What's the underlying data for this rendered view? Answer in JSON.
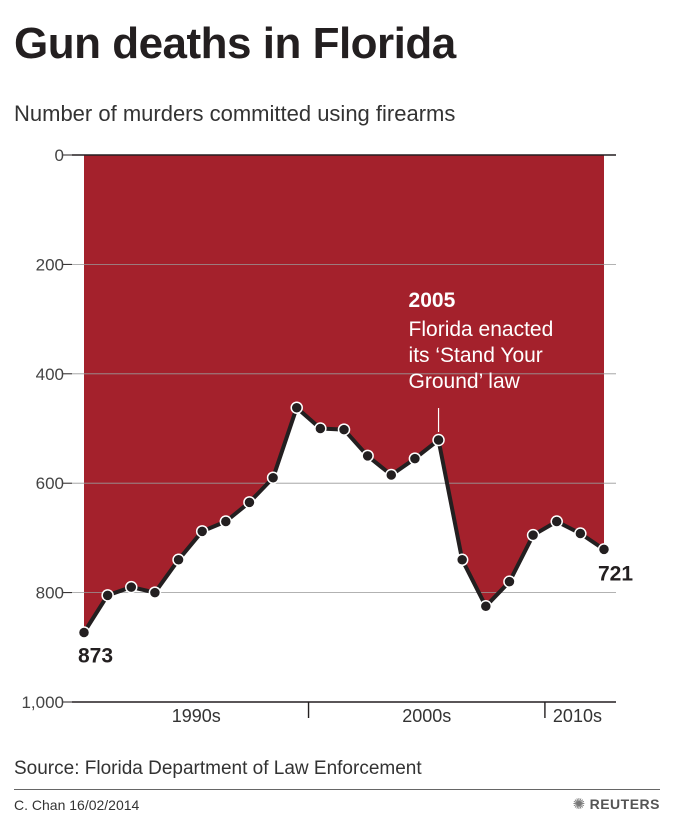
{
  "chart_data": {
    "type": "area",
    "title": "Gun deaths in Florida",
    "subtitle": "Number of murders committed using firearms",
    "ylabel": "",
    "xlabel": "",
    "y_inverted": true,
    "ylim": [
      0,
      1000
    ],
    "y_ticks": [
      0,
      200,
      400,
      600,
      800,
      1000
    ],
    "y_tick_labels": [
      "0",
      "200",
      "400",
      "600",
      "800",
      "1,000"
    ],
    "x_tick_labels": [
      "1990s",
      "2000s",
      "2010s"
    ],
    "x": [
      1990,
      1991,
      1992,
      1993,
      1994,
      1995,
      1996,
      1997,
      1998,
      1999,
      2000,
      2001,
      2002,
      2003,
      2004,
      2005,
      2006,
      2007,
      2008,
      2009,
      2010,
      2011,
      2012
    ],
    "series": [
      {
        "values": [
          873,
          805,
          790,
          800,
          740,
          688,
          670,
          635,
          590,
          462,
          500,
          502,
          550,
          585,
          555,
          521,
          740,
          825,
          780,
          695,
          670,
          692,
          721
        ],
        "area_color": "#a4212c",
        "line_color": "#231f20"
      }
    ],
    "grid": true,
    "end_labels": {
      "first": "873",
      "last": "721"
    },
    "annotation": {
      "x": 2005,
      "year": "2005",
      "lines": [
        "Florida enacted",
        "its ‘Stand Your",
        "Ground’ law"
      ]
    }
  },
  "footer": {
    "source": "Source: Florida Department of Law Enforcement",
    "credit": "C. Chan  16/02/2014",
    "logo": "REUTERS",
    "logo_icon": "reuters-dot-icon"
  }
}
